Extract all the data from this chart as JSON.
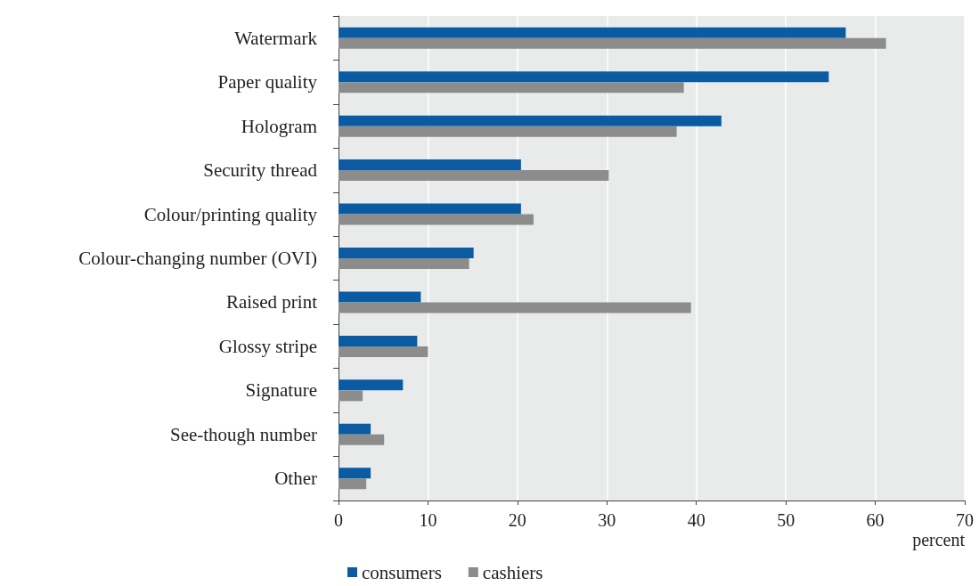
{
  "chart_data": {
    "type": "bar",
    "orientation": "horizontal",
    "xlabel": "percent",
    "categories": [
      "Watermark",
      "Paper quality",
      "Hologram",
      "Security thread",
      "Colour/printing quality",
      "Colour-changing number (OVI)",
      "Raised print",
      "Glossy stripe",
      "Signature",
      "See-though number",
      "Other"
    ],
    "series": [
      {
        "name": "consumers",
        "color": "#0b5ba3",
        "values": [
          56.7,
          54.8,
          42.8,
          20.4,
          20.4,
          15.1,
          9.2,
          8.8,
          7.2,
          3.6,
          3.6
        ]
      },
      {
        "name": "cashiers",
        "color": "#8c8c8c",
        "values": [
          61.2,
          38.6,
          37.8,
          30.2,
          21.8,
          14.6,
          39.4,
          10.0,
          2.7,
          5.1,
          3.1
        ]
      }
    ],
    "xlim": [
      0,
      70
    ],
    "xticks": [
      0,
      10,
      20,
      30,
      40,
      50,
      60,
      70
    ],
    "grid": "x",
    "legend": "bottom left"
  }
}
